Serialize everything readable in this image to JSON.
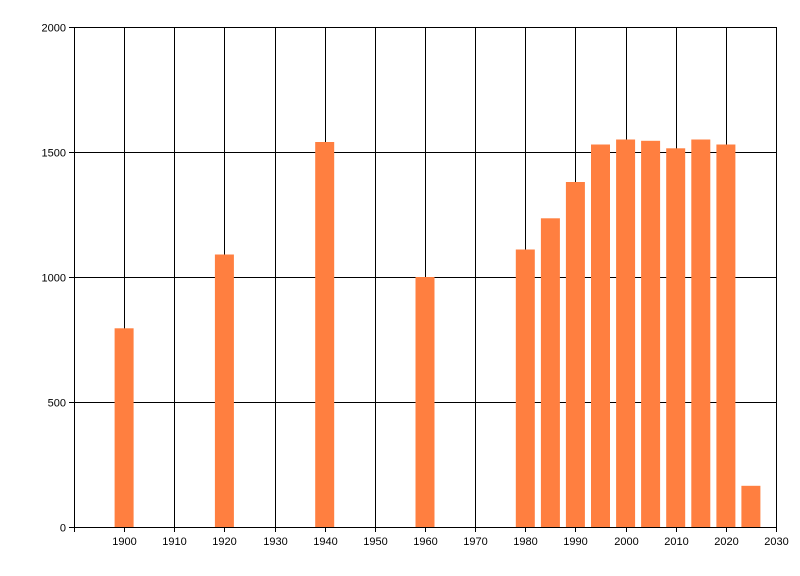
{
  "colors": {
    "bar": "#ff7f40",
    "grid": "#000000",
    "background": "#ffffff"
  },
  "chart_data": {
    "type": "bar",
    "title": "",
    "xlabel": "",
    "ylabel": "",
    "grid": true,
    "xlim": [
      1890,
      2030
    ],
    "ylim": [
      0,
      2000
    ],
    "x_ticks": [
      1900,
      1910,
      1920,
      1930,
      1940,
      1950,
      1960,
      1970,
      1980,
      1990,
      2000,
      2010,
      2020,
      2030
    ],
    "y_ticks": [
      0,
      500,
      1000,
      1500,
      2000
    ],
    "x": [
      1900,
      1920,
      1940,
      1960,
      1980,
      1985,
      1990,
      1995,
      2000,
      2005,
      2010,
      2015,
      2020,
      2025
    ],
    "values": [
      795,
      1090,
      1540,
      1000,
      1110,
      1235,
      1380,
      1530,
      1550,
      1545,
      1515,
      1550,
      1530,
      165
    ]
  }
}
